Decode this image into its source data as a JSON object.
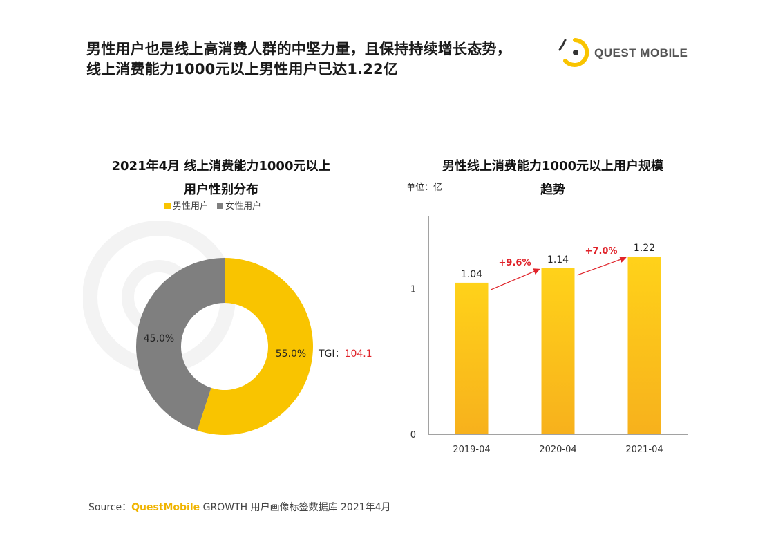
{
  "header": {
    "title_line1": "男性用户也是线上高消费人群的中坚力量，且保持持续增长态势，",
    "title_line2": "线上消费能力1000元以上男性用户已达1.22亿",
    "logo_text": "QUEST MOBILE"
  },
  "colors": {
    "accent_yellow": "#F9C400",
    "bar_top": "#FFD21A",
    "bar_bottom": "#F7B11C",
    "female_gray": "#7F7F7F",
    "growth_red": "#E0232A"
  },
  "chart_data": [
    {
      "type": "pie",
      "title_line1": "2021年4月 线上消费能力1000元以上",
      "title_line2": "用户性别分布",
      "donut": true,
      "legend_position": "top",
      "slices": [
        {
          "name": "男性用户",
          "value": 55.0,
          "label": "55.0%",
          "color": "#F9C400"
        },
        {
          "name": "女性用户",
          "value": 45.0,
          "label": "45.0%",
          "color": "#7F7F7F"
        }
      ],
      "annotation": {
        "label": "TGI：",
        "value": "104.1"
      }
    },
    {
      "type": "bar",
      "title_line1": "男性线上消费能力1000元以上用户规模",
      "title_line2": "趋势",
      "unit": "单位：亿",
      "categories": [
        "2019-04",
        "2020-04",
        "2021-04"
      ],
      "values": [
        1.04,
        1.14,
        1.22
      ],
      "value_labels": [
        "1.04",
        "1.14",
        "1.22"
      ],
      "growth_labels": [
        "+9.6%",
        "+7.0%"
      ],
      "ylim": [
        0,
        1.5
      ],
      "yticks": [
        0,
        1
      ],
      "ytick_labels": [
        "0",
        "1"
      ],
      "grid": false
    }
  ],
  "source": {
    "prefix": "Source：",
    "brand": "QuestMobile",
    "rest": " GROWTH 用户画像标签数据库 2021年4月"
  }
}
